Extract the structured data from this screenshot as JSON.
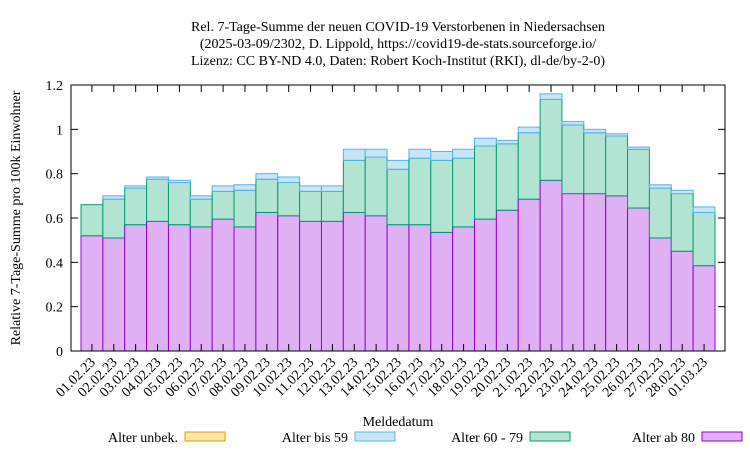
{
  "chart_data": {
    "type": "bar",
    "stacked": true,
    "title_lines": [
      "Rel. 7-Tage-Summe der neuen COVID-19 Verstorbenen in Niedersachsen",
      "(2025-03-09/2302, D. Lippold, https://covid19-de-stats.sourceforge.io/",
      "Lizenz: CC BY-ND 4.0, Daten: Robert Koch-Institut (RKI), dl-de/by-2-0)"
    ],
    "xlabel": "Meldedatum",
    "ylabel": "Relative 7-Tage-Summe pro 100k Einwohner",
    "ylim": [
      0,
      1.2
    ],
    "yticks": [
      "0",
      "0.2",
      "0.4",
      "0.6",
      "0.8",
      "1",
      "1.2"
    ],
    "ytick_values": [
      0,
      0.2,
      0.4,
      0.6,
      0.8,
      1.0,
      1.2
    ],
    "grid": false,
    "legend_position": "bottom",
    "categories": [
      "01.02.23",
      "02.02.23",
      "03.02.23",
      "04.02.23",
      "05.02.23",
      "06.02.23",
      "07.02.23",
      "08.02.23",
      "09.02.23",
      "10.02.23",
      "11.02.23",
      "12.02.23",
      "13.02.23",
      "14.02.23",
      "15.02.23",
      "16.02.23",
      "17.02.23",
      "18.02.23",
      "19.02.23",
      "20.02.23",
      "21.02.23",
      "22.02.23",
      "23.02.23",
      "24.02.23",
      "25.02.23",
      "26.02.23",
      "27.02.23",
      "28.02.23",
      "01.03.23"
    ],
    "series": [
      {
        "name": "Alter ab 80",
        "fill": "#dfb1f4",
        "stroke": "#9400d3",
        "values": [
          0.52,
          0.51,
          0.57,
          0.585,
          0.57,
          0.56,
          0.595,
          0.56,
          0.625,
          0.61,
          0.585,
          0.585,
          0.625,
          0.61,
          0.57,
          0.57,
          0.535,
          0.56,
          0.595,
          0.635,
          0.685,
          0.77,
          0.71,
          0.71,
          0.7,
          0.645,
          0.51,
          0.45,
          0.385
        ]
      },
      {
        "name": "Alter 60 - 79",
        "fill": "#b3e3d2",
        "stroke": "#009e73",
        "values": [
          0.14,
          0.175,
          0.165,
          0.19,
          0.19,
          0.125,
          0.125,
          0.165,
          0.15,
          0.15,
          0.135,
          0.135,
          0.235,
          0.265,
          0.25,
          0.3,
          0.325,
          0.31,
          0.33,
          0.3,
          0.3,
          0.365,
          0.31,
          0.275,
          0.27,
          0.265,
          0.225,
          0.26,
          0.24
        ]
      },
      {
        "name": "Alter bis 59",
        "fill": "#c6e5f6",
        "stroke": "#56b4e9",
        "values": [
          0,
          0.015,
          0.01,
          0.01,
          0.01,
          0.015,
          0.025,
          0.025,
          0.025,
          0.025,
          0.025,
          0.025,
          0.05,
          0.035,
          0.04,
          0.04,
          0.04,
          0.04,
          0.035,
          0.015,
          0.025,
          0.025,
          0.015,
          0.015,
          0.01,
          0.01,
          0.015,
          0.015,
          0.025
        ]
      },
      {
        "name": "Alter unbek.",
        "fill": "#fce5a6",
        "stroke": "#e69f00",
        "values": [
          0,
          0,
          0,
          0,
          0,
          0,
          0,
          0,
          0,
          0,
          0,
          0,
          0,
          0,
          0,
          0,
          0,
          0,
          0,
          0,
          0,
          0,
          0,
          0,
          0,
          0,
          0,
          0,
          0
        ]
      }
    ],
    "legend_order": [
      "Alter unbek.",
      "Alter bis 59",
      "Alter 60 - 79",
      "Alter ab 80"
    ]
  }
}
